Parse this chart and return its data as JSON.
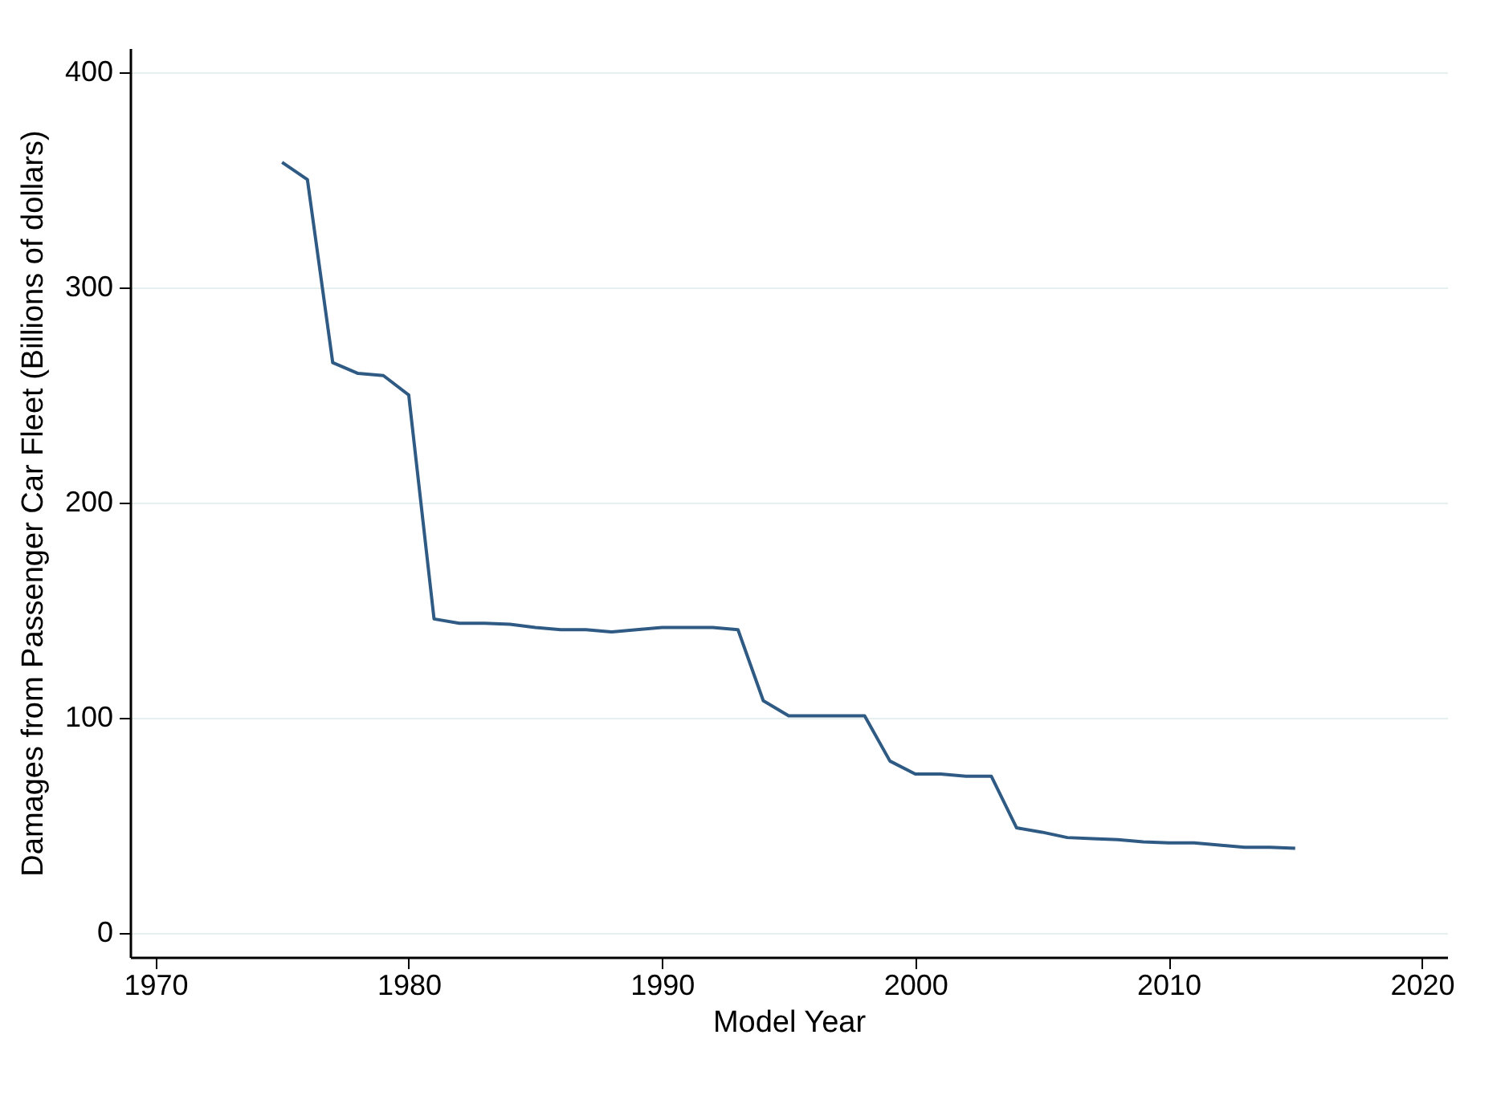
{
  "chart_data": {
    "type": "line",
    "xlabel": "Model Year",
    "ylabel": "Damages from Passenger Car Fleet (Billions of dollars)",
    "x": [
      1975,
      1976,
      1977,
      1978,
      1979,
      1980,
      1981,
      1982,
      1983,
      1984,
      1985,
      1986,
      1987,
      1988,
      1989,
      1990,
      1991,
      1992,
      1993,
      1994,
      1995,
      1996,
      1997,
      1998,
      1999,
      2000,
      2001,
      2002,
      2003,
      2004,
      2005,
      2006,
      2007,
      2008,
      2009,
      2010,
      2011,
      2012,
      2013,
      2014,
      2015
    ],
    "series": [
      {
        "color": "#2e5a84",
        "values": [
          358,
          350,
          265,
          260,
          259,
          250,
          146,
          144,
          144,
          143.5,
          142,
          141,
          141,
          140,
          141,
          142,
          142,
          142,
          141,
          108,
          101,
          101,
          101,
          101,
          80,
          74,
          74,
          73,
          73,
          49,
          47,
          44.5,
          44,
          43.5,
          42.5,
          42,
          42,
          41,
          40,
          40,
          39.5
        ]
      }
    ],
    "xlim": [
      1969,
      2021
    ],
    "xticks": [
      1970,
      1980,
      1990,
      2000,
      2010,
      2020
    ],
    "ylim": [
      -11,
      411
    ],
    "yticks": [
      0,
      100,
      200,
      300,
      400
    ],
    "grid": "y",
    "marker": "none",
    "line_style": "solid"
  }
}
